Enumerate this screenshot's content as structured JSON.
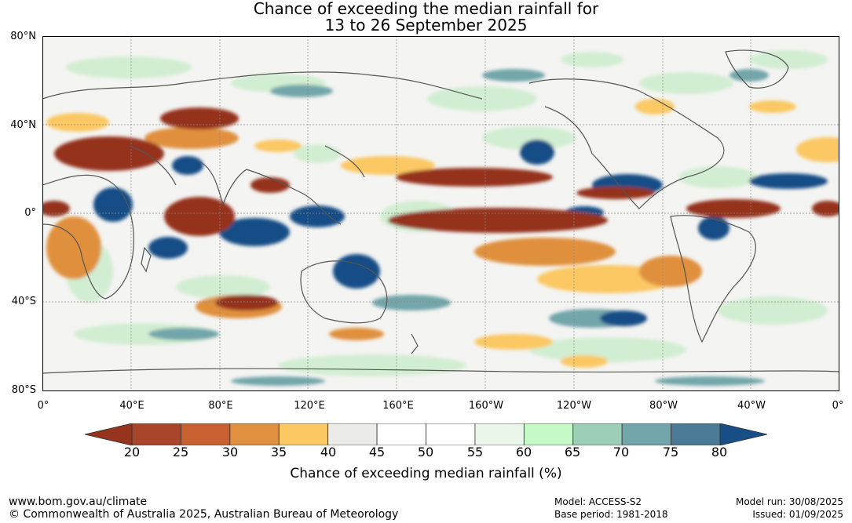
{
  "title": {
    "line1": "Chance of exceeding the median rainfall for",
    "line2": "13 to 26 September 2025"
  },
  "map": {
    "latitude_labels": [
      "80°N",
      "40°N",
      "0°",
      "40°S",
      "80°S"
    ],
    "longitude_labels": [
      "0°",
      "40°E",
      "80°E",
      "120°E",
      "160°E",
      "160°W",
      "120°W",
      "80°W",
      "40°W",
      "0°"
    ]
  },
  "colorbar": {
    "ticks": [
      "20",
      "25",
      "30",
      "35",
      "40",
      "45",
      "50",
      "55",
      "60",
      "65",
      "70",
      "75",
      "80"
    ],
    "colors": [
      "#a9452a",
      "#c8602f",
      "#e0903e",
      "#fbc864",
      "#ebebe7",
      "#ffffff",
      "#ffffff",
      "#eaf6ea",
      "#c5fac8",
      "#9ccfb8",
      "#72a6aa",
      "#4a7a95"
    ],
    "low_extend_color": "#95331c",
    "high_extend_color": "#174e86",
    "label": "Chance of exceeding median rainfall (%)"
  },
  "footer": {
    "website": "www.bom.gov.au/climate",
    "copyright": "© Commonwealth of Australia 2025, Australian Bureau of Meteorology",
    "model": "Model: ACCESS-S2",
    "base_period": "Base period: 1981-2018",
    "model_run": "Model run: 30/08/2025",
    "issued": "Issued: 01/09/2025"
  }
}
